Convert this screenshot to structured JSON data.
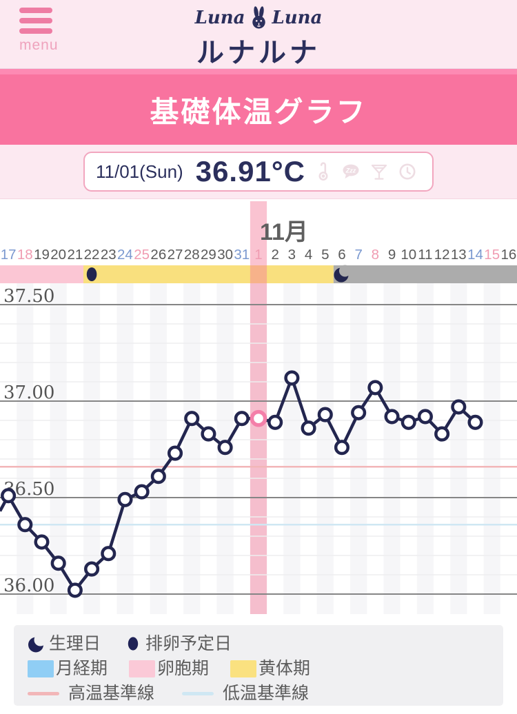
{
  "header": {
    "menu_label": "menu",
    "logo_script_left": "Luna",
    "logo_script_right": "Luna",
    "logo_jp": "ルナルナ"
  },
  "banner": {
    "title": "基礎体温グラフ"
  },
  "summary": {
    "date": "11/01(Sun)",
    "temp": "36.91°C",
    "icons": [
      "thermometer-icon",
      "sleep-icon",
      "alcohol-icon",
      "clock-icon"
    ]
  },
  "chart_data": {
    "type": "line",
    "month_label": "11月",
    "ylabel": "",
    "y_ticks": [
      {
        "label": "37.50",
        "value": 37.5
      },
      {
        "label": "37.00",
        "value": 37.0
      },
      {
        "label": "36.50",
        "value": 36.5
      },
      {
        "label": "36.00",
        "value": 36.0
      }
    ],
    "y_minor_step": 0.1,
    "ylim": [
      35.95,
      37.6
    ],
    "dates": [
      {
        "day": "17",
        "weekday": "sat"
      },
      {
        "day": "18",
        "weekday": "sun"
      },
      {
        "day": "19",
        "weekday": "wd"
      },
      {
        "day": "20",
        "weekday": "wd"
      },
      {
        "day": "21",
        "weekday": "wd"
      },
      {
        "day": "22",
        "weekday": "wd"
      },
      {
        "day": "23",
        "weekday": "wd"
      },
      {
        "day": "24",
        "weekday": "sat"
      },
      {
        "day": "25",
        "weekday": "sun"
      },
      {
        "day": "26",
        "weekday": "wd"
      },
      {
        "day": "27",
        "weekday": "wd"
      },
      {
        "day": "28",
        "weekday": "wd"
      },
      {
        "day": "29",
        "weekday": "wd"
      },
      {
        "day": "30",
        "weekday": "wd"
      },
      {
        "day": "31",
        "weekday": "sat"
      },
      {
        "day": "1",
        "weekday": "sun"
      },
      {
        "day": "2",
        "weekday": "wd"
      },
      {
        "day": "3",
        "weekday": "wd"
      },
      {
        "day": "4",
        "weekday": "wd"
      },
      {
        "day": "5",
        "weekday": "wd"
      },
      {
        "day": "6",
        "weekday": "wd"
      },
      {
        "day": "7",
        "weekday": "sat"
      },
      {
        "day": "8",
        "weekday": "sun"
      },
      {
        "day": "9",
        "weekday": "wd"
      },
      {
        "day": "10",
        "weekday": "wd"
      },
      {
        "day": "11",
        "weekday": "wd"
      },
      {
        "day": "12",
        "weekday": "wd"
      },
      {
        "day": "13",
        "weekday": "wd"
      },
      {
        "day": "14",
        "weekday": "sat"
      },
      {
        "day": "15",
        "weekday": "sun"
      },
      {
        "day": "16",
        "weekday": "wd"
      }
    ],
    "temps": [
      36.51,
      36.36,
      36.27,
      36.16,
      36.02,
      36.13,
      36.21,
      36.49,
      36.53,
      36.61,
      36.73,
      36.91,
      36.83,
      36.76,
      36.91,
      36.91,
      36.89,
      37.12,
      36.86,
      36.93,
      36.76,
      36.94,
      37.07,
      36.92,
      36.89,
      36.92,
      36.83,
      36.97,
      36.89,
      null,
      null
    ],
    "lead_in_temp": 36.43,
    "selected_index": 15,
    "selected_temp": 36.91,
    "phases": [
      {
        "name": "卵胞期",
        "color": "#fbc6d4",
        "start": 0,
        "end": 5
      },
      {
        "name": "黄体期",
        "color": "#f9e07e",
        "start": 5,
        "end": 20
      },
      {
        "name": "",
        "color": "#acacac",
        "start": 20,
        "end": 31
      }
    ],
    "markers": [
      {
        "type": "ovulation-dot",
        "col": 5
      },
      {
        "type": "period-moon",
        "col": 20
      }
    ],
    "baselines": {
      "high": {
        "label": "高温基準線",
        "value": 36.66,
        "color": "#f2b6b8"
      },
      "low": {
        "label": "低温基準線",
        "value": 36.36,
        "color": "#cfe7f3"
      }
    },
    "colors": {
      "line": "#23264f",
      "point_fill": "#ffffff",
      "selected_ring": "#f47fa9",
      "grid_major": "#858585",
      "grid_minor": "#ededef",
      "stripe": "#f6f6f8",
      "highlight": "rgba(243,121,153,0.45)",
      "label_wd": "#5a5a5a",
      "label_sat": "#7b99d0",
      "label_sun": "#f09cb2",
      "month_label": "#5f5f5f",
      "tick_label": "#555555"
    }
  },
  "legend": {
    "row1": [
      {
        "icon": "crescent-moon-icon",
        "label": "生理日"
      },
      {
        "icon": "filled-dot-icon",
        "label": "排卵予定日"
      }
    ],
    "row2": [
      {
        "swatch": "#90cef5",
        "label": "月経期"
      },
      {
        "swatch": "#fbc9d7",
        "label": "卵胞期"
      },
      {
        "swatch": "#fae180",
        "label": "黄体期"
      }
    ],
    "row3": [
      {
        "line": "#f2b6b8",
        "label": "高温基準線"
      },
      {
        "line": "#cfe7f3",
        "label": "低温基準線"
      }
    ]
  }
}
